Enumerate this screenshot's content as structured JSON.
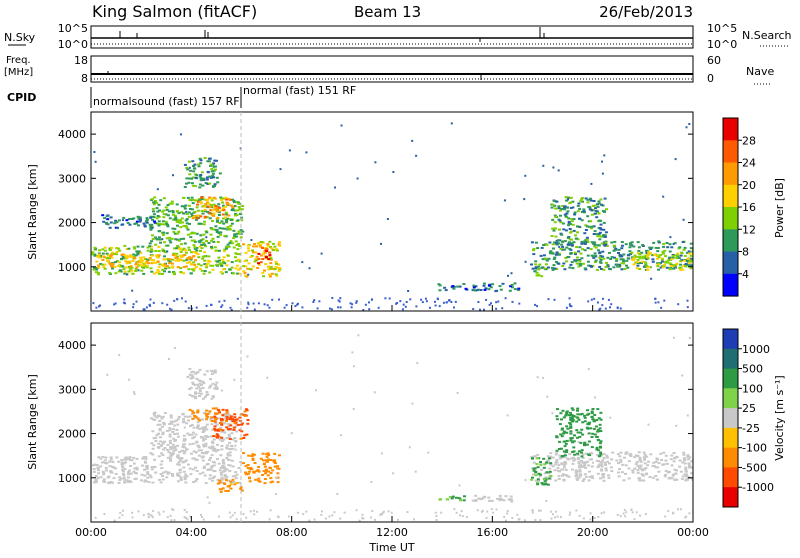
{
  "header": {
    "title": "King Salmon (fitACF)",
    "beam": "Beam 13",
    "date": "26/Feb/2013"
  },
  "top_panels": {
    "nsky_label": "N.Sky",
    "nsearch_label": "N.Search",
    "nsky_ticks": [
      "10^5",
      "10^0"
    ],
    "nsearch_ticks": [
      "10^5",
      "10^0"
    ],
    "freq_label_line1": "Freq.",
    "freq_label_line2": "[MHz]",
    "freq_ticks": [
      "18",
      "8"
    ],
    "nave_label": "Nave",
    "nave_ticks": [
      "60",
      "0"
    ],
    "cpid_label": "CPID",
    "cpid_segments": [
      "normalsound (fast) 157 RF",
      "normal (fast) 151 RF"
    ]
  },
  "colorbars": {
    "power": {
      "label": "Power [dB]",
      "ticks": [
        "28",
        "24",
        "20",
        "16",
        "12",
        "8",
        "4"
      ],
      "colors": [
        "#e80000",
        "#ff5a00",
        "#ff9a00",
        "#ffd000",
        "#7fd000",
        "#2e9a5a",
        "#2860a8",
        "#0000ff"
      ]
    },
    "velocity": {
      "label": "Velocity [m s⁻¹]",
      "ticks": [
        "1000",
        "500",
        "100",
        "25",
        "-25",
        "-100",
        "-500",
        "-1000"
      ],
      "colors": [
        "#1e3cb4",
        "#1f6e72",
        "#2e9a44",
        "#7ed34a",
        "#c8c8c8",
        "#ffc000",
        "#ff8c00",
        "#ff4a00",
        "#e80000"
      ]
    }
  },
  "chart_data": [
    {
      "type": "heatmap",
      "panel": "power",
      "ylabel": "Slant Range [km]",
      "xlabel": "Time UT",
      "ylim": [
        0,
        4500
      ],
      "yticks": [
        "1000",
        "2000",
        "3000",
        "4000"
      ],
      "xlim": [
        0,
        24
      ],
      "xticks": [
        "00:00",
        "04:00",
        "08:00",
        "12:00",
        "16:00",
        "20:00",
        "00:00"
      ],
      "regions": [
        {
          "t0": 0.0,
          "t1": 6.0,
          "r0": 850,
          "r1": 1500,
          "level": 12
        },
        {
          "t0": 0.2,
          "t1": 4.2,
          "r0": 1000,
          "r1": 1300,
          "level": 18
        },
        {
          "t0": 2.3,
          "t1": 6.0,
          "r0": 1500,
          "r1": 2600,
          "level": 10
        },
        {
          "t0": 4.0,
          "t1": 5.6,
          "r0": 2100,
          "r1": 2600,
          "level": 20
        },
        {
          "t0": 0.4,
          "t1": 2.5,
          "r0": 1900,
          "r1": 2200,
          "level": 6
        },
        {
          "t0": 3.7,
          "t1": 5.1,
          "r0": 2800,
          "r1": 3500,
          "level": 8
        },
        {
          "t0": 6.0,
          "t1": 7.5,
          "r0": 800,
          "r1": 1600,
          "level": 16
        },
        {
          "t0": 6.6,
          "t1": 7.1,
          "r0": 1100,
          "r1": 1450,
          "level": 26
        },
        {
          "t0": 13.8,
          "t1": 17.0,
          "r0": 470,
          "r1": 650,
          "level": 6
        },
        {
          "t0": 17.5,
          "t1": 24.0,
          "r0": 950,
          "r1": 1600,
          "level": 8
        },
        {
          "t0": 17.5,
          "t1": 18.2,
          "r0": 800,
          "r1": 1000,
          "level": 12
        },
        {
          "t0": 18.3,
          "t1": 20.5,
          "r0": 1500,
          "r1": 2600,
          "level": 8
        },
        {
          "t0": 21.5,
          "t1": 24.0,
          "r0": 950,
          "r1": 1350,
          "level": 14
        }
      ]
    },
    {
      "type": "heatmap",
      "panel": "velocity",
      "ylabel": "Slant Range [km]",
      "xlabel": "Time UT",
      "ylim": [
        0,
        4500
      ],
      "yticks": [
        "1000",
        "2000",
        "3000",
        "4000"
      ],
      "xlim": [
        0,
        24
      ],
      "xticks": [
        "00:00",
        "04:00",
        "08:00",
        "12:00",
        "16:00",
        "20:00",
        "00:00"
      ],
      "regions": [
        {
          "t0": 0.0,
          "t1": 6.0,
          "r0": 900,
          "r1": 1500,
          "velocity": 0
        },
        {
          "t0": 2.3,
          "t1": 5.8,
          "r0": 1500,
          "r1": 2500,
          "velocity": 10
        },
        {
          "t0": 4.8,
          "t1": 6.2,
          "r0": 1900,
          "r1": 2600,
          "velocity": -400
        },
        {
          "t0": 3.8,
          "t1": 5.0,
          "r0": 2300,
          "r1": 2600,
          "velocity": -200
        },
        {
          "t0": 3.8,
          "t1": 5.0,
          "r0": 2800,
          "r1": 3500,
          "velocity": 0
        },
        {
          "t0": 6.0,
          "t1": 7.5,
          "r0": 900,
          "r1": 1600,
          "velocity": -150
        },
        {
          "t0": 5.0,
          "t1": 6.0,
          "r0": 700,
          "r1": 1000,
          "velocity": -80
        },
        {
          "t0": 13.8,
          "t1": 14.9,
          "r0": 470,
          "r1": 620,
          "velocity": 60
        },
        {
          "t0": 14.9,
          "t1": 17.0,
          "r0": 470,
          "r1": 620,
          "velocity": 0
        },
        {
          "t0": 17.5,
          "t1": 24.0,
          "r0": 950,
          "r1": 1600,
          "velocity": 0
        },
        {
          "t0": 17.5,
          "t1": 18.3,
          "r0": 850,
          "r1": 1500,
          "velocity": 80
        },
        {
          "t0": 18.5,
          "t1": 20.3,
          "r0": 1500,
          "r1": 2600,
          "velocity": 200
        }
      ]
    }
  ]
}
